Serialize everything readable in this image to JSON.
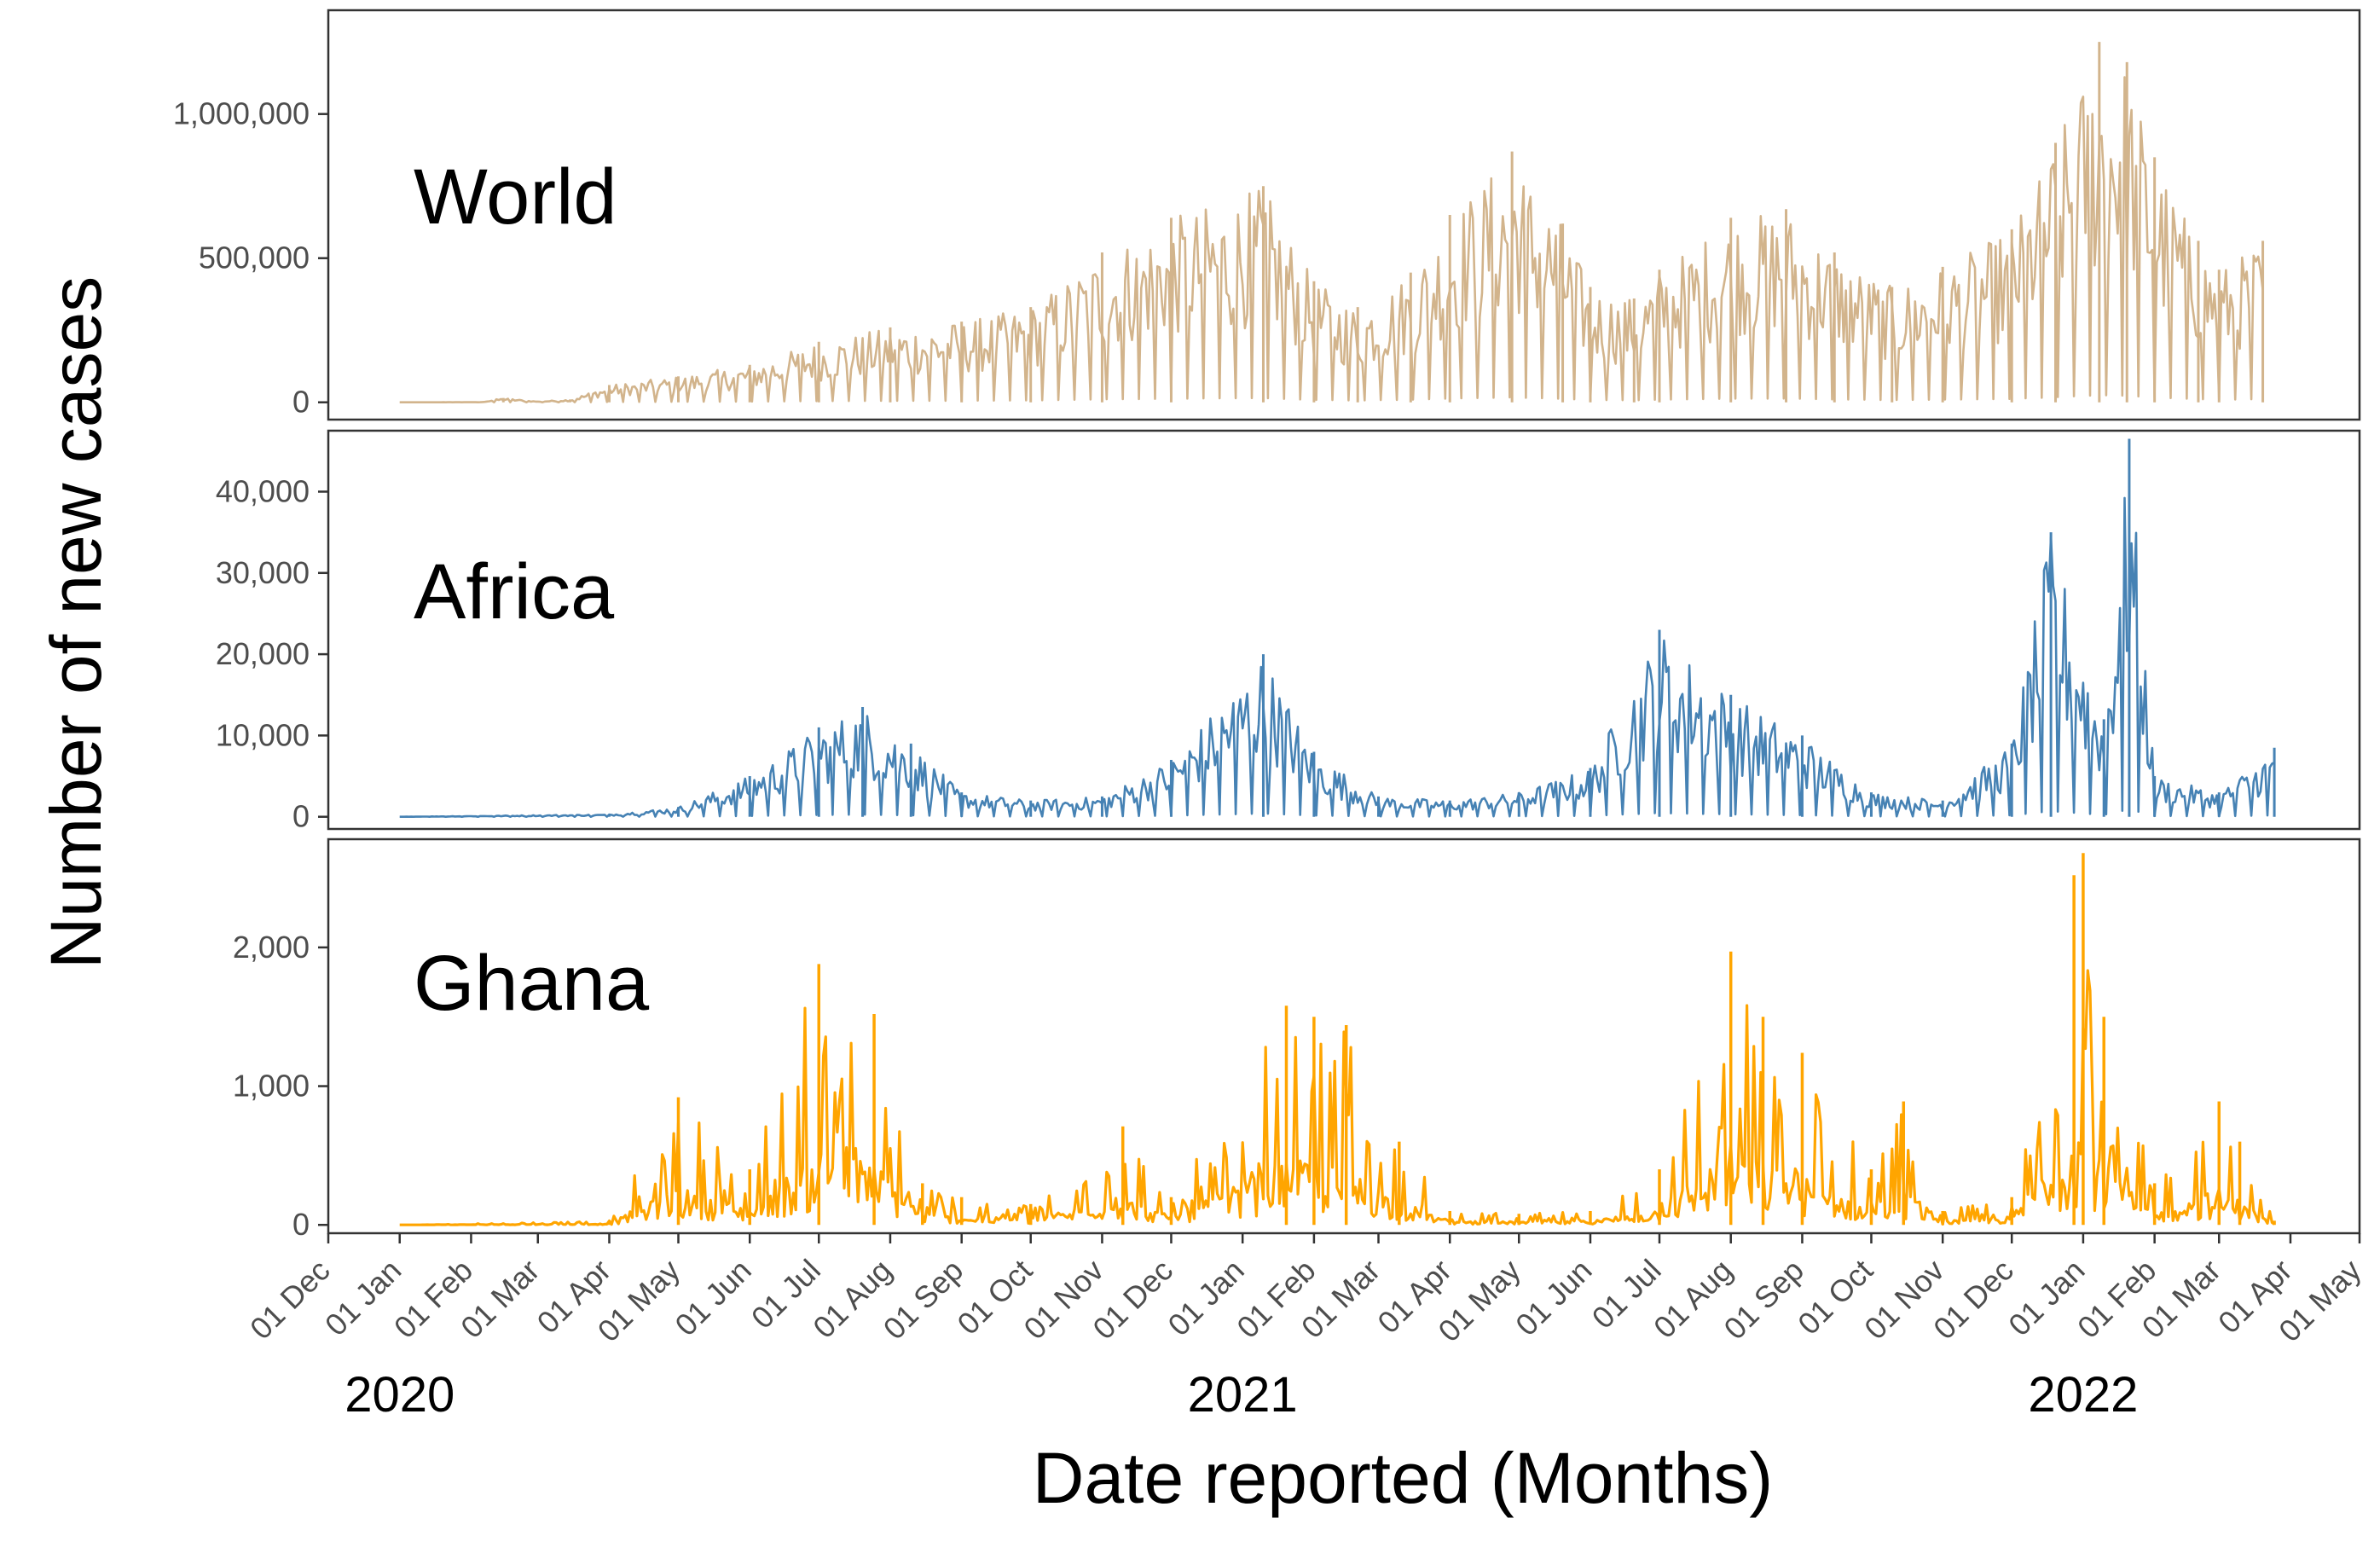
{
  "chart_data": {
    "type": "line",
    "xlabel": "Date reported (Months)",
    "ylabel": "Number of new cases",
    "x_range": [
      "2019-12-01",
      "2022-05-01"
    ],
    "x_tick_labels": [
      "01 Dec",
      "01 Jan",
      "01 Feb",
      "01 Mar",
      "01 Apr",
      "01 May",
      "01 Jun",
      "01 Jul",
      "01 Aug",
      "01 Sep",
      "01 Oct",
      "01 Nov",
      "01 Dec",
      "01 Jan",
      "01 Feb",
      "01 Mar",
      "01 Apr",
      "01 May",
      "01 Jun",
      "01 Jul",
      "01 Aug",
      "01 Sep",
      "01 Oct",
      "01 Nov",
      "01 Dec",
      "01 Jan",
      "01 Feb",
      "01 Mar",
      "01 Apr",
      "01 May"
    ],
    "year_labels": [
      {
        "text": "2020",
        "date": "2020-01-01"
      },
      {
        "text": "2021",
        "date": "2021-01-01"
      },
      {
        "text": "2022",
        "date": "2022-01-01"
      }
    ],
    "grid": false,
    "panels": [
      {
        "label": "World",
        "color": "#D2B48C",
        "ylim": [
          -60000,
          1360000
        ],
        "y_ticks": [
          0,
          500000,
          1000000
        ],
        "y_tick_labels": [
          "0",
          "500,000",
          "1,000,000"
        ],
        "series": [
          {
            "date": "2020-01-01",
            "value": 0
          },
          {
            "date": "2020-02-05",
            "value": 500
          },
          {
            "date": "2020-02-15",
            "value": 15000
          },
          {
            "date": "2020-03-01",
            "value": 3000
          },
          {
            "date": "2020-03-15",
            "value": 10000
          },
          {
            "date": "2020-04-01",
            "value": 60000
          },
          {
            "date": "2020-05-01",
            "value": 90000
          },
          {
            "date": "2020-06-01",
            "value": 130000
          },
          {
            "date": "2020-07-01",
            "value": 210000
          },
          {
            "date": "2020-08-01",
            "value": 260000
          },
          {
            "date": "2020-09-01",
            "value": 280000
          },
          {
            "date": "2020-10-01",
            "value": 330000
          },
          {
            "date": "2020-11-01",
            "value": 520000
          },
          {
            "date": "2020-12-01",
            "value": 640000
          },
          {
            "date": "2021-01-10",
            "value": 750000
          },
          {
            "date": "2021-02-01",
            "value": 420000
          },
          {
            "date": "2021-02-20",
            "value": 330000
          },
          {
            "date": "2021-03-15",
            "value": 450000
          },
          {
            "date": "2021-04-01",
            "value": 650000
          },
          {
            "date": "2021-04-28",
            "value": 870000
          },
          {
            "date": "2021-05-20",
            "value": 620000
          },
          {
            "date": "2021-06-01",
            "value": 400000
          },
          {
            "date": "2021-06-20",
            "value": 360000
          },
          {
            "date": "2021-07-01",
            "value": 460000
          },
          {
            "date": "2021-08-01",
            "value": 640000
          },
          {
            "date": "2021-08-25",
            "value": 670000
          },
          {
            "date": "2021-09-15",
            "value": 520000
          },
          {
            "date": "2021-10-10",
            "value": 400000
          },
          {
            "date": "2021-11-01",
            "value": 470000
          },
          {
            "date": "2021-12-01",
            "value": 600000
          },
          {
            "date": "2021-12-20",
            "value": 900000
          },
          {
            "date": "2022-01-08",
            "value": 1250000
          },
          {
            "date": "2022-01-20",
            "value": 1180000
          },
          {
            "date": "2022-02-01",
            "value": 850000
          },
          {
            "date": "2022-02-20",
            "value": 560000
          },
          {
            "date": "2022-03-01",
            "value": 460000
          },
          {
            "date": "2022-03-20",
            "value": 560000
          }
        ]
      },
      {
        "label": "Africa",
        "color": "#4682B4",
        "ylim": [
          -1500,
          47500
        ],
        "y_ticks": [
          0,
          10000,
          20000,
          30000,
          40000
        ],
        "y_tick_labels": [
          "0",
          "10,000",
          "20,000",
          "30,000",
          "40,000"
        ],
        "series": [
          {
            "date": "2020-01-01",
            "value": 0
          },
          {
            "date": "2020-04-01",
            "value": 300
          },
          {
            "date": "2020-05-01",
            "value": 1200
          },
          {
            "date": "2020-06-01",
            "value": 5000
          },
          {
            "date": "2020-07-01",
            "value": 11000
          },
          {
            "date": "2020-07-20",
            "value": 13500
          },
          {
            "date": "2020-08-10",
            "value": 9000
          },
          {
            "date": "2020-09-01",
            "value": 3000
          },
          {
            "date": "2020-10-01",
            "value": 2000
          },
          {
            "date": "2020-11-01",
            "value": 2500
          },
          {
            "date": "2020-12-01",
            "value": 7000
          },
          {
            "date": "2021-01-10",
            "value": 20000
          },
          {
            "date": "2021-02-01",
            "value": 8000
          },
          {
            "date": "2021-03-01",
            "value": 2500
          },
          {
            "date": "2021-04-01",
            "value": 2000
          },
          {
            "date": "2021-05-01",
            "value": 3000
          },
          {
            "date": "2021-06-01",
            "value": 6000
          },
          {
            "date": "2021-07-01",
            "value": 23000
          },
          {
            "date": "2021-08-01",
            "value": 15000
          },
          {
            "date": "2021-09-01",
            "value": 10000
          },
          {
            "date": "2021-10-01",
            "value": 3000
          },
          {
            "date": "2021-11-01",
            "value": 2000
          },
          {
            "date": "2021-12-01",
            "value": 9000
          },
          {
            "date": "2021-12-18",
            "value": 35000
          },
          {
            "date": "2022-01-10",
            "value": 12000
          },
          {
            "date": "2022-01-21",
            "value": 46500
          },
          {
            "date": "2022-02-01",
            "value": 5000
          },
          {
            "date": "2022-03-01",
            "value": 3000
          },
          {
            "date": "2022-03-25",
            "value": 8500
          }
        ]
      },
      {
        "label": "Ghana",
        "color": "#FFA500",
        "ylim": [
          -60,
          2780
        ],
        "y_ticks": [
          0,
          1000,
          2000
        ],
        "y_tick_labels": [
          "0",
          "1,000",
          "2,000"
        ],
        "series": [
          {
            "date": "2020-01-01",
            "value": 0
          },
          {
            "date": "2020-04-01",
            "value": 30
          },
          {
            "date": "2020-05-01",
            "value": 920
          },
          {
            "date": "2020-06-01",
            "value": 400
          },
          {
            "date": "2020-07-01",
            "value": 1880
          },
          {
            "date": "2020-07-25",
            "value": 1520
          },
          {
            "date": "2020-08-15",
            "value": 300
          },
          {
            "date": "2020-09-01",
            "value": 200
          },
          {
            "date": "2020-10-01",
            "value": 150
          },
          {
            "date": "2020-11-10",
            "value": 710
          },
          {
            "date": "2020-12-01",
            "value": 200
          },
          {
            "date": "2021-01-20",
            "value": 1580
          },
          {
            "date": "2021-02-01",
            "value": 1500
          },
          {
            "date": "2021-02-15",
            "value": 1440
          },
          {
            "date": "2021-03-10",
            "value": 600
          },
          {
            "date": "2021-04-01",
            "value": 100
          },
          {
            "date": "2021-05-01",
            "value": 80
          },
          {
            "date": "2021-06-01",
            "value": 100
          },
          {
            "date": "2021-07-01",
            "value": 400
          },
          {
            "date": "2021-08-01",
            "value": 1970
          },
          {
            "date": "2021-08-15",
            "value": 1500
          },
          {
            "date": "2021-09-01",
            "value": 1240
          },
          {
            "date": "2021-10-01",
            "value": 400
          },
          {
            "date": "2021-10-15",
            "value": 890
          },
          {
            "date": "2021-11-01",
            "value": 100
          },
          {
            "date": "2021-12-01",
            "value": 200
          },
          {
            "date": "2021-12-28",
            "value": 2520
          },
          {
            "date": "2022-01-01",
            "value": 2680
          },
          {
            "date": "2022-01-10",
            "value": 1500
          },
          {
            "date": "2022-02-01",
            "value": 300
          },
          {
            "date": "2022-03-01",
            "value": 890
          },
          {
            "date": "2022-03-10",
            "value": 600
          },
          {
            "date": "2022-03-25",
            "value": 30
          }
        ]
      }
    ]
  }
}
